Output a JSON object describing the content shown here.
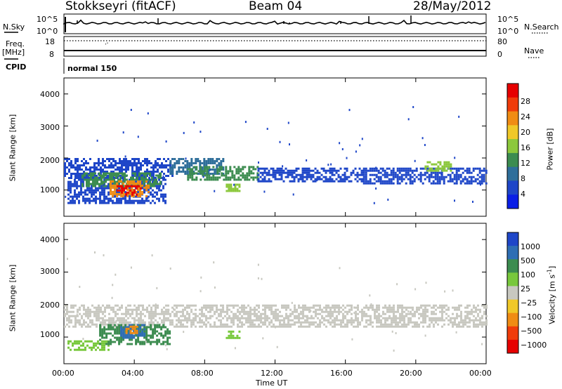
{
  "header": {
    "station": "Stokkseyri (fitACF)",
    "beam": "Beam 04",
    "date": "28/May/2012"
  },
  "summary": {
    "nsky_label": "N.Sky",
    "nsky_ticks": [
      "10^5",
      "10^0"
    ],
    "nsearch_label": "N.Search",
    "nsearch_ticks": [
      "10^5",
      "10^0"
    ],
    "freq_label": "Freq.",
    "freq_unit": "[MHz]",
    "freq_ticks": [
      "18",
      "8"
    ],
    "nave_label": "Nave",
    "nave_ticks": [
      "80",
      "0"
    ],
    "cpid_label": "CPID",
    "cpid_value": "normal 150"
  },
  "chart_data": [
    {
      "type": "heatmap",
      "name": "power-panel",
      "ylabel": "Slant Range [km]",
      "ylim": [
        180,
        4500
      ],
      "yticks": [
        "1000",
        "2000",
        "3000",
        "4000"
      ],
      "xlim": [
        0,
        24
      ],
      "colorbar": {
        "label": "Power [dB]",
        "levels": [
          "4",
          "8",
          "12",
          "16",
          "20",
          "24",
          "28"
        ],
        "colors": [
          "#0a1ee6",
          "#1e46c8",
          "#2e6e9a",
          "#3c8c50",
          "#8cc83c",
          "#f0c828",
          "#f08c14",
          "#f03c0a",
          "#e60000"
        ]
      },
      "regions": [
        {
          "t": [
            0.0,
            6.2
          ],
          "r": [
            1400,
            2000
          ],
          "level": 1
        },
        {
          "t": [
            0.2,
            5.8
          ],
          "r": [
            620,
            1350
          ],
          "level": 1
        },
        {
          "t": [
            1.0,
            5.5
          ],
          "r": [
            1150,
            1550
          ],
          "level": 3
        },
        {
          "t": [
            2.6,
            4.8
          ],
          "r": [
            800,
            1300
          ],
          "level": 6
        },
        {
          "t": [
            3.0,
            4.4
          ],
          "r": [
            850,
            1150
          ],
          "level": 8
        },
        {
          "t": [
            6.0,
            9.0
          ],
          "r": [
            1500,
            2000
          ],
          "level": 2
        },
        {
          "t": [
            7.0,
            11.0
          ],
          "r": [
            1350,
            1750
          ],
          "level": 3
        },
        {
          "t": [
            9.2,
            10.0
          ],
          "r": [
            1000,
            1200
          ],
          "level": 4
        },
        {
          "t": [
            11.0,
            17.0
          ],
          "r": [
            1300,
            1700
          ],
          "level": 1
        },
        {
          "t": [
            17.0,
            24.0
          ],
          "r": [
            1200,
            1700
          ],
          "level": 1
        },
        {
          "t": [
            20.5,
            22.0
          ],
          "r": [
            1600,
            1900
          ],
          "level": 4
        }
      ]
    },
    {
      "type": "heatmap",
      "name": "velocity-panel",
      "ylabel": "Slant Range [km]",
      "ylim": [
        180,
        4500
      ],
      "yticks": [
        "1000",
        "2000",
        "3000",
        "4000"
      ],
      "xlim": [
        0,
        24
      ],
      "xticks": [
        "00:00",
        "04:00",
        "08:00",
        "12:00",
        "16:00",
        "20:00",
        "00:00"
      ],
      "xlabel": "Time UT",
      "colorbar": {
        "label": "Velocity [m s",
        "label_sup": "-1",
        "label_end": "]",
        "levels": [
          "1000",
          "500",
          "100",
          "25",
          "−25",
          "−100",
          "−500",
          "−1000"
        ],
        "colors": [
          "#1e46c8",
          "#2e6eb4",
          "#3c8c50",
          "#78c83c",
          "#c8c8c0",
          "#f0c828",
          "#f08c14",
          "#f03c0a",
          "#e60000"
        ]
      },
      "regions": [
        {
          "t": [
            0.0,
            24.0
          ],
          "r": [
            1300,
            2000
          ],
          "level": 4
        },
        {
          "t": [
            0.2,
            2.5
          ],
          "r": [
            620,
            900
          ],
          "level": 3
        },
        {
          "t": [
            2.0,
            6.0
          ],
          "r": [
            800,
            1400
          ],
          "level": 2
        },
        {
          "t": [
            3.2,
            4.6
          ],
          "r": [
            1000,
            1400
          ],
          "level": 1
        },
        {
          "t": [
            3.5,
            4.2
          ],
          "r": [
            1150,
            1350
          ],
          "level": 6
        },
        {
          "t": [
            9.2,
            10.0
          ],
          "r": [
            1000,
            1200
          ],
          "level": 3
        }
      ]
    }
  ]
}
